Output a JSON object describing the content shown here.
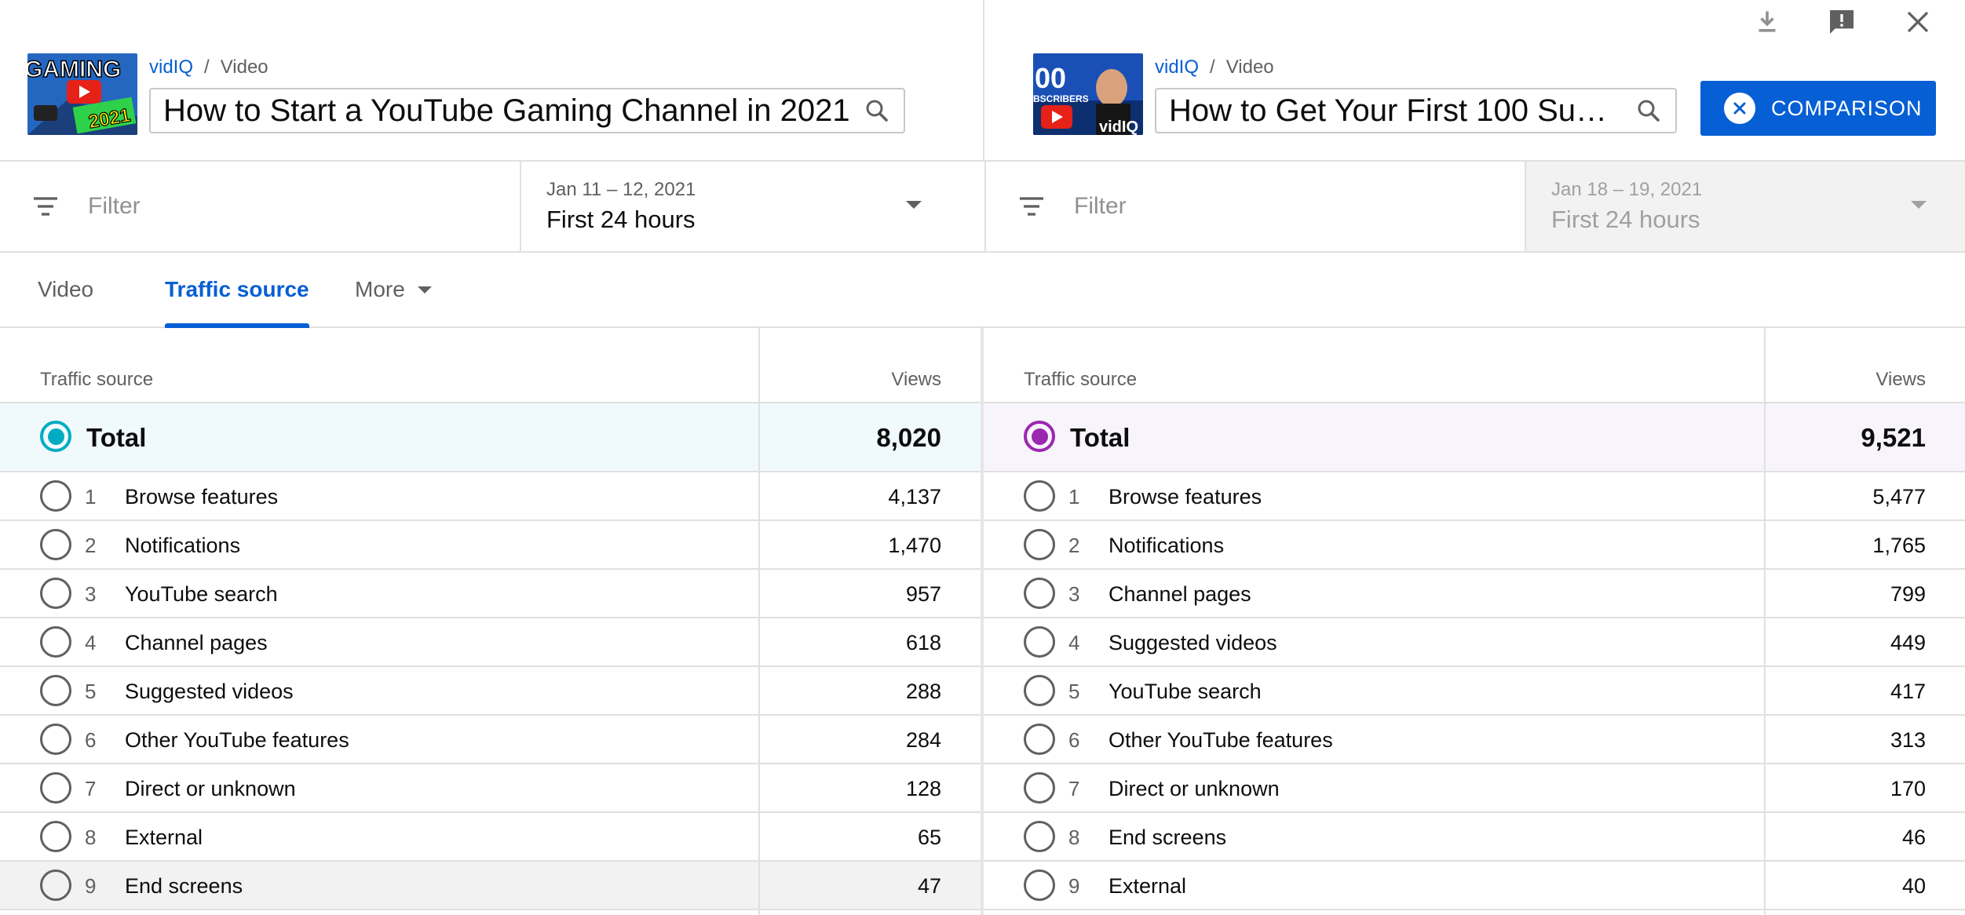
{
  "colors": {
    "accent": "#065fd4",
    "total_left": "#00acc1",
    "total_right": "#9c27b0",
    "total_left_bg": "#f0fafd",
    "total_right_bg": "#f8f4fc",
    "hover_row_bg": "#f2f2f2"
  },
  "top_icons": [
    "download-icon",
    "feedback-icon",
    "close-icon"
  ],
  "left": {
    "breadcrumb": {
      "channel": "vidIQ",
      "separator": "/",
      "section": "Video"
    },
    "thumbnail": {
      "text_top": "GAMING",
      "text_bottom": "2021"
    },
    "title": "How to Start a YouTube Gaming Channel in 2021",
    "filter_placeholder": "Filter",
    "date_range": "Jan 11 – 12, 2021",
    "date_label": "First 24 hours"
  },
  "right": {
    "breadcrumb": {
      "channel": "vidIQ",
      "separator": "/",
      "section": "Video"
    },
    "thumbnail": {
      "text_top": "00",
      "text_bottom": "BSCRIBERS",
      "brand": "vidIQ"
    },
    "title": "How to Get Your First 100 Sub…",
    "filter_placeholder": "Filter",
    "date_range": "Jan 18 – 19, 2021",
    "date_label": "First 24 hours",
    "comparison_button": "COMPARISON"
  },
  "tabs": [
    {
      "label": "Video"
    },
    {
      "label": "Traffic source"
    },
    {
      "label": "More"
    }
  ],
  "table_left": {
    "col_source": "Traffic source",
    "col_views": "Views",
    "total": {
      "label": "Total",
      "views": "8,020"
    },
    "rows": [
      {
        "rank": "1",
        "source": "Browse features",
        "views": "4,137"
      },
      {
        "rank": "2",
        "source": "Notifications",
        "views": "1,470"
      },
      {
        "rank": "3",
        "source": "YouTube search",
        "views": "957"
      },
      {
        "rank": "4",
        "source": "Channel pages",
        "views": "618"
      },
      {
        "rank": "5",
        "source": "Suggested videos",
        "views": "288"
      },
      {
        "rank": "6",
        "source": "Other YouTube features",
        "views": "284"
      },
      {
        "rank": "7",
        "source": "Direct or unknown",
        "views": "128"
      },
      {
        "rank": "8",
        "source": "External",
        "views": "65"
      },
      {
        "rank": "9",
        "source": "End screens",
        "views": "47"
      }
    ]
  },
  "table_right": {
    "col_source": "Traffic source",
    "col_views": "Views",
    "total": {
      "label": "Total",
      "views": "9,521"
    },
    "rows": [
      {
        "rank": "1",
        "source": "Browse features",
        "views": "5,477"
      },
      {
        "rank": "2",
        "source": "Notifications",
        "views": "1,765"
      },
      {
        "rank": "3",
        "source": "Channel pages",
        "views": "799"
      },
      {
        "rank": "4",
        "source": "Suggested videos",
        "views": "449"
      },
      {
        "rank": "5",
        "source": "YouTube search",
        "views": "417"
      },
      {
        "rank": "6",
        "source": "Other YouTube features",
        "views": "313"
      },
      {
        "rank": "7",
        "source": "Direct or unknown",
        "views": "170"
      },
      {
        "rank": "8",
        "source": "End screens",
        "views": "46"
      },
      {
        "rank": "9",
        "source": "External",
        "views": "40"
      }
    ]
  }
}
